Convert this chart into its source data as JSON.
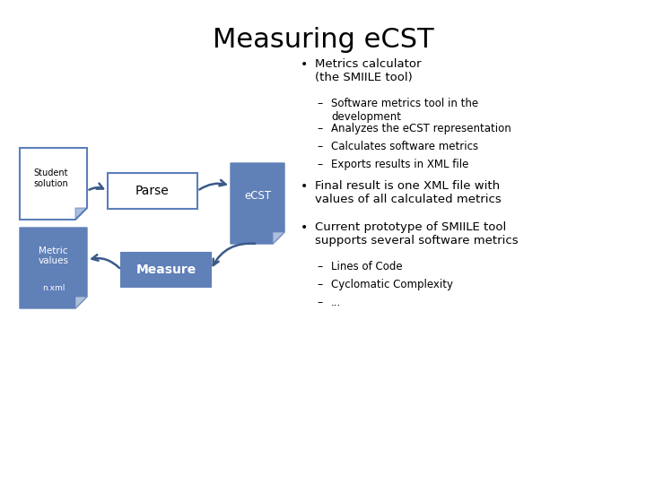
{
  "title": "Measuring eCST",
  "title_fontsize": 22,
  "background_color": "#ffffff",
  "blue_med": "#5b7fba",
  "blue_dark": "#3a5a8a",
  "blue_fill": "#6080b8",
  "text_color": "#000000",
  "bullet1_main": "Metrics calculator\n(the SMIILE tool)",
  "bullet1_subs": [
    "Software metrics tool in the\ndevelopment",
    "Analyzes the eCST representation",
    "Calculates software metrics",
    "Exports results in XML file"
  ],
  "bullet2_main": "Final result is one XML file with\nvalues of all calculated metrics",
  "bullet3_main": "Current prototype of SMIILE tool\nsupports several software metrics",
  "bullet3_subs": [
    "Lines of Code",
    "Cyclomatic Complexity",
    "..."
  ]
}
